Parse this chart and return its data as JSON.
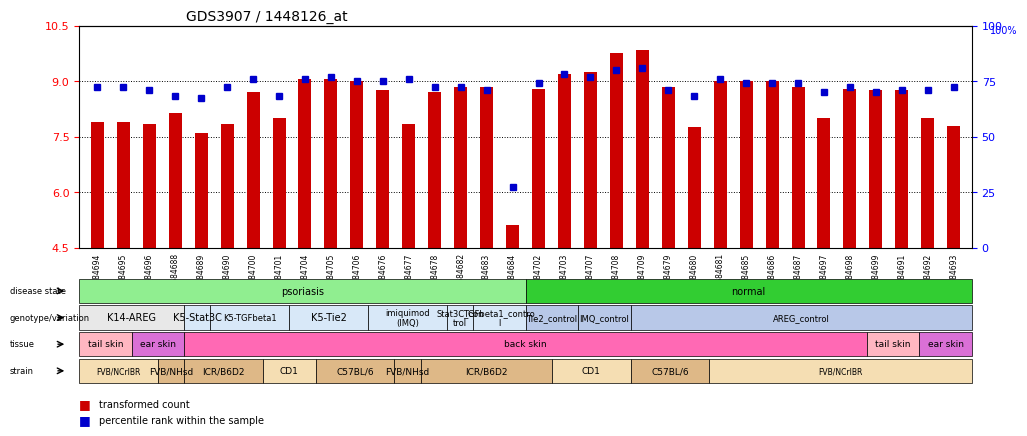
{
  "title": "GDS3907 / 1448126_at",
  "samples": [
    "GSM684694",
    "GSM684695",
    "GSM684696",
    "GSM684688",
    "GSM684689",
    "GSM684690",
    "GSM684700",
    "GSM684701",
    "GSM684704",
    "GSM684705",
    "GSM684706",
    "GSM684676",
    "GSM684677",
    "GSM684678",
    "GSM684682",
    "GSM684683",
    "GSM684684",
    "GSM684702",
    "GSM684703",
    "GSM684707",
    "GSM684708",
    "GSM684709",
    "GSM684679",
    "GSM684680",
    "GSM684681",
    "GSM684685",
    "GSM684686",
    "GSM684687",
    "GSM684697",
    "GSM684698",
    "GSM684699",
    "GSM684691",
    "GSM684692",
    "GSM684693"
  ],
  "bar_values": [
    7.9,
    7.9,
    7.85,
    8.15,
    7.6,
    7.85,
    8.7,
    8.0,
    9.05,
    9.05,
    9.0,
    8.75,
    7.85,
    8.7,
    8.85,
    8.85,
    5.1,
    8.8,
    9.2,
    9.25,
    9.75,
    9.85,
    8.85,
    7.75,
    9.0,
    9.0,
    9.0,
    8.85,
    8.0,
    8.8,
    8.75,
    8.75,
    8.0,
    7.8
  ],
  "dot_values": [
    8.85,
    8.85,
    8.75,
    8.6,
    8.55,
    8.85,
    9.05,
    8.6,
    9.05,
    9.1,
    9.0,
    9.0,
    9.05,
    8.85,
    8.85,
    8.75,
    6.15,
    8.95,
    9.2,
    9.1,
    9.3,
    9.35,
    8.75,
    8.6,
    9.05,
    8.95,
    8.95,
    8.95,
    8.7,
    8.85,
    8.7,
    8.75,
    8.75,
    8.85
  ],
  "ylim_left": [
    4.5,
    10.5
  ],
  "ylim_right": [
    0,
    100
  ],
  "yticks_left": [
    4.5,
    6.0,
    7.5,
    9.0,
    10.5
  ],
  "yticks_right": [
    0,
    25,
    50,
    75,
    100
  ],
  "disease_state": {
    "psoriasis": {
      "start": 0,
      "end": 16,
      "color": "#90EE90"
    },
    "normal": {
      "start": 17,
      "end": 33,
      "color": "#32CD32"
    }
  },
  "genotype_variation": [
    {
      "label": "K14-AREG",
      "start": 0,
      "end": 3,
      "color": "#E8E8E8"
    },
    {
      "label": "K5-Stat3C",
      "start": 4,
      "end": 4,
      "color": "#D8E8F8"
    },
    {
      "label": "K5-TGFbeta1",
      "start": 5,
      "end": 7,
      "color": "#D8E8F8"
    },
    {
      "label": "K5-Tie2",
      "start": 8,
      "end": 10,
      "color": "#D8E8F8"
    },
    {
      "label": "imiquimod\n(IMQ)",
      "start": 11,
      "end": 13,
      "color": "#D8E8F8"
    },
    {
      "label": "Stat3C_con\ntrol",
      "start": 14,
      "end": 14,
      "color": "#D8E8F8"
    },
    {
      "label": "TGFbeta1_contro\nl",
      "start": 15,
      "end": 16,
      "color": "#D8E8F8"
    },
    {
      "label": "Tie2_control",
      "start": 17,
      "end": 18,
      "color": "#B8C8E8"
    },
    {
      "label": "IMQ_control",
      "start": 19,
      "end": 20,
      "color": "#B8C8E8"
    },
    {
      "label": "AREG_control",
      "start": 21,
      "end": 33,
      "color": "#B8C8E8"
    }
  ],
  "tissue": [
    {
      "label": "tail skin",
      "start": 0,
      "end": 1,
      "color": "#FFB6C1"
    },
    {
      "label": "ear skin",
      "start": 2,
      "end": 3,
      "color": "#DA70D6"
    },
    {
      "label": "back skin",
      "start": 4,
      "end": 29,
      "color": "#FF69B4"
    },
    {
      "label": "tail skin",
      "start": 30,
      "end": 31,
      "color": "#FFB6C1"
    },
    {
      "label": "ear skin",
      "start": 32,
      "end": 33,
      "color": "#DA70D6"
    }
  ],
  "strain": [
    {
      "label": "FVB/NCrIBR",
      "start": 0,
      "end": 2,
      "color": "#F5DEB3"
    },
    {
      "label": "FVB/NHsd",
      "start": 3,
      "end": 3,
      "color": "#DEB887"
    },
    {
      "label": "ICR/B6D2",
      "start": 4,
      "end": 6,
      "color": "#DEB887"
    },
    {
      "label": "CD1",
      "start": 7,
      "end": 8,
      "color": "#F5DEB3"
    },
    {
      "label": "C57BL/6",
      "start": 9,
      "end": 11,
      "color": "#DEB887"
    },
    {
      "label": "FVB/NHsd",
      "start": 12,
      "end": 12,
      "color": "#DEB887"
    },
    {
      "label": "ICR/B6D2",
      "start": 13,
      "end": 17,
      "color": "#DEB887"
    },
    {
      "label": "CD1",
      "start": 18,
      "end": 20,
      "color": "#F5DEB3"
    },
    {
      "label": "C57BL/6",
      "start": 21,
      "end": 23,
      "color": "#DEB887"
    },
    {
      "label": "FVB/NCrIBR",
      "start": 24,
      "end": 33,
      "color": "#F5DEB3"
    }
  ],
  "bar_color": "#CC0000",
  "dot_color": "#0000CC",
  "background_color": "#FFFFFF"
}
